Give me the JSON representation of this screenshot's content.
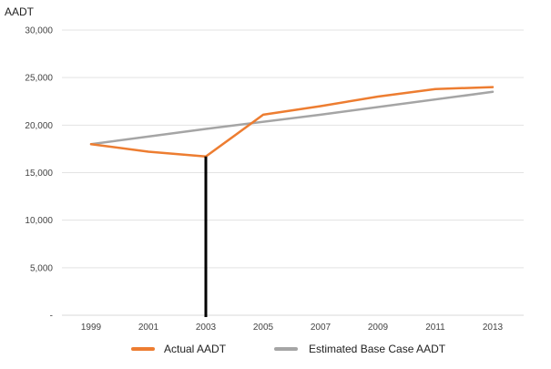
{
  "chart_data": {
    "type": "line",
    "title": "",
    "ylabel": "AADT",
    "xlabel": "",
    "categories": [
      "1999",
      "2001",
      "2003",
      "2005",
      "2007",
      "2009",
      "2011",
      "2013"
    ],
    "x": [
      1999,
      2001,
      2003,
      2005,
      2007,
      2009,
      2011,
      2013
    ],
    "ylim": [
      0,
      30000
    ],
    "yticks": [
      0,
      5000,
      10000,
      15000,
      20000,
      25000,
      30000
    ],
    "ytick_labels": [
      "-",
      "5,000",
      "10,000",
      "15,000",
      "20,000",
      "25,000",
      "30,000"
    ],
    "grid": true,
    "legend_position": "bottom",
    "series": [
      {
        "name": "Actual AADT",
        "color": "#ED7D31",
        "points": [
          [
            1999,
            18000
          ],
          [
            2001,
            17200
          ],
          [
            2003,
            16700
          ],
          [
            2005,
            21100
          ],
          [
            2007,
            22000
          ],
          [
            2009,
            23000
          ],
          [
            2011,
            23800
          ],
          [
            2013,
            24000
          ]
        ]
      },
      {
        "name": "Estimated Base Case AADT",
        "color": "#A5A5A5",
        "points": [
          [
            1999,
            18000
          ],
          [
            2003,
            19600
          ],
          [
            2007,
            21100
          ],
          [
            2013,
            23500
          ]
        ]
      }
    ],
    "annotations": [
      {
        "type": "vertical-line",
        "x": 2003,
        "y_top": 16700,
        "color": "#000000"
      }
    ]
  }
}
